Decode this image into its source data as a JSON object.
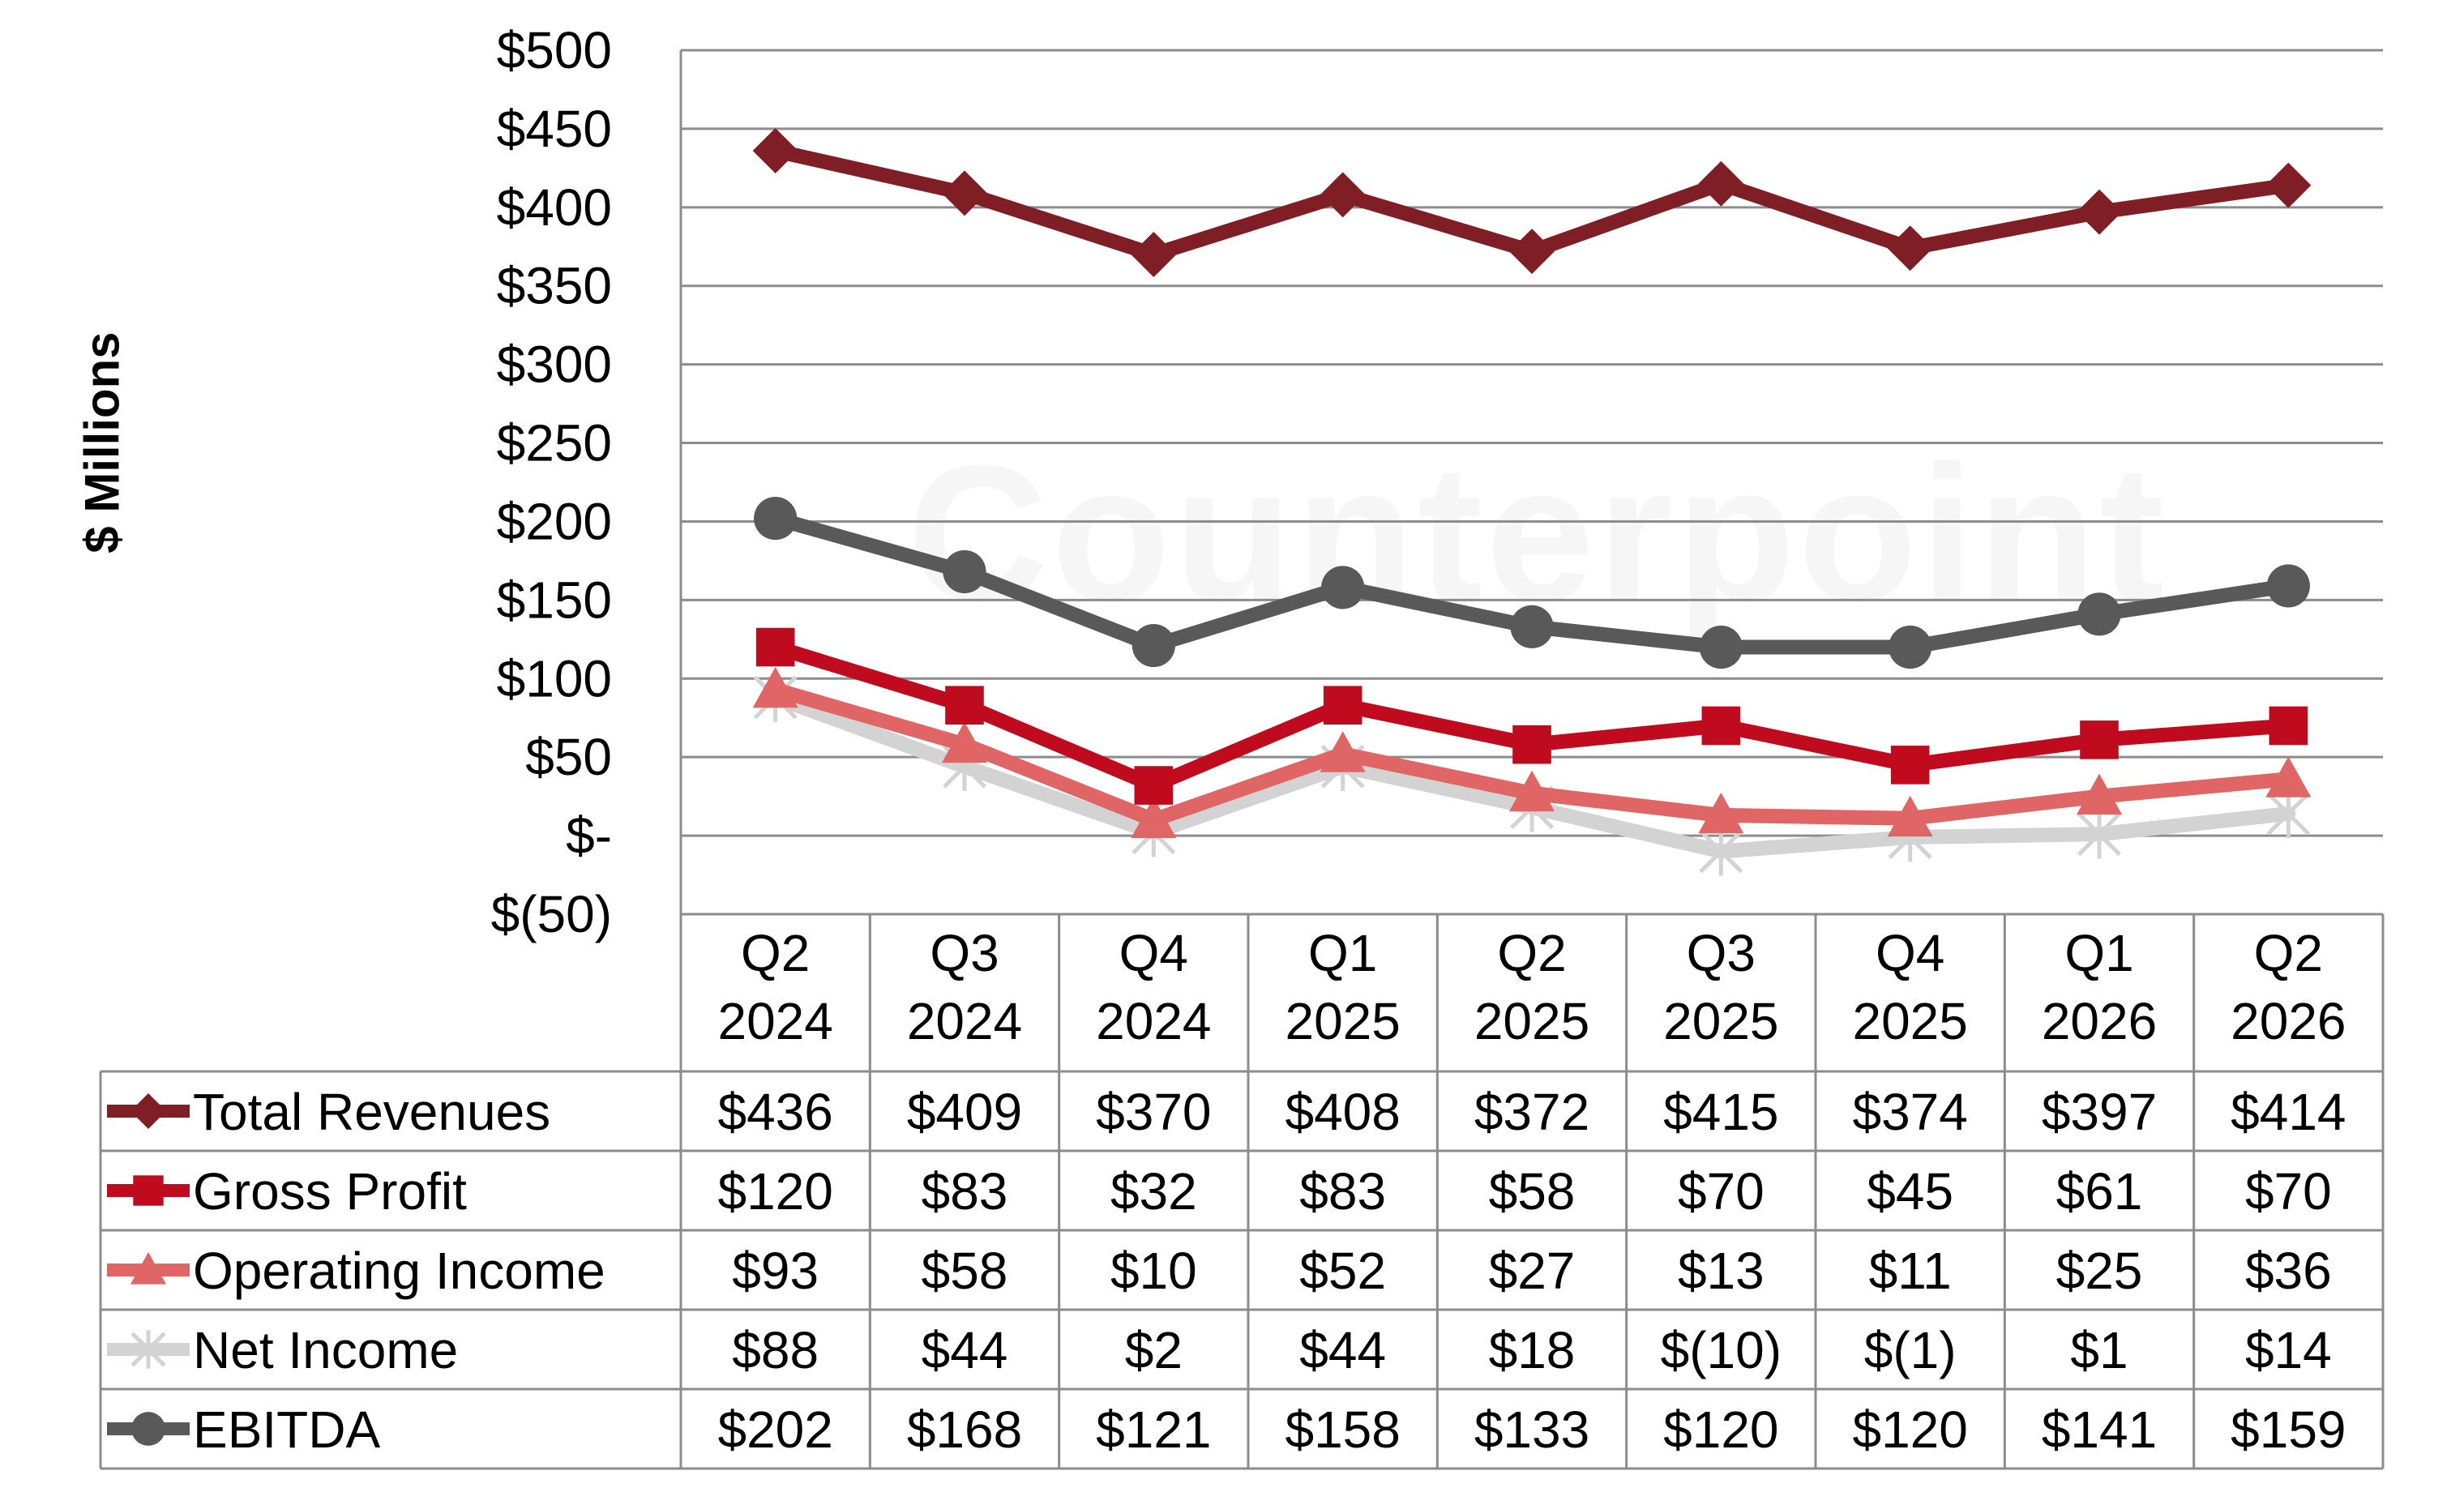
{
  "watermark": "Counterpoint",
  "chart_data": {
    "type": "line",
    "title": "",
    "ylabel": "$ Millions",
    "ylim": [
      -50,
      500
    ],
    "yticks": [
      500,
      450,
      400,
      350,
      300,
      250,
      200,
      150,
      100,
      50,
      0,
      -50
    ],
    "ytick_labels": [
      "$500",
      "$450",
      "$400",
      "$350",
      "$300",
      "$250",
      "$200",
      "$150",
      "$100",
      "$50",
      "$-",
      "$(50)"
    ],
    "grid": true,
    "legend": "data table below chart",
    "categories": [
      [
        "Q2",
        "2024"
      ],
      [
        "Q3",
        "2024"
      ],
      [
        "Q4",
        "2024"
      ],
      [
        "Q1",
        "2025"
      ],
      [
        "Q2",
        "2025"
      ],
      [
        "Q3",
        "2025"
      ],
      [
        "Q4",
        "2025"
      ],
      [
        "Q1",
        "2026"
      ],
      [
        "Q2",
        "2026"
      ]
    ],
    "series": [
      {
        "name": "Total Revenues",
        "marker": "diamond",
        "color": "#7F1F25",
        "values": [
          436,
          409,
          370,
          408,
          372,
          415,
          374,
          397,
          414
        ],
        "labels": [
          "$436",
          "$409",
          "$370",
          "$408",
          "$372",
          "$415",
          "$374",
          "$397",
          "$414"
        ]
      },
      {
        "name": "Gross Profit",
        "marker": "square",
        "color": "#C00B1E",
        "values": [
          120,
          83,
          32,
          83,
          58,
          70,
          45,
          61,
          70
        ],
        "labels": [
          "$120",
          "$83",
          "$32",
          "$83",
          "$58",
          "$70",
          "$45",
          "$61",
          "$70"
        ]
      },
      {
        "name": "Operating Income",
        "marker": "triangle",
        "color": "#E06565",
        "values": [
          93,
          58,
          10,
          52,
          27,
          13,
          11,
          25,
          36
        ],
        "labels": [
          "$93",
          "$58",
          "$10",
          "$52",
          "$27",
          "$13",
          "$11",
          "$25",
          "$36"
        ]
      },
      {
        "name": "Net Income",
        "marker": "star",
        "color": "#D3D3D3",
        "values": [
          88,
          44,
          2,
          44,
          18,
          -10,
          -1,
          1,
          14
        ],
        "labels": [
          "$88",
          "$44",
          "$2",
          "$44",
          "$18",
          "$(10)",
          "$(1)",
          "$1",
          "$14"
        ]
      },
      {
        "name": "EBITDA",
        "marker": "circle",
        "color": "#595959",
        "values": [
          202,
          168,
          121,
          158,
          133,
          120,
          120,
          141,
          159
        ],
        "labels": [
          "$202",
          "$168",
          "$121",
          "$158",
          "$133",
          "$120",
          "$120",
          "$141",
          "$159"
        ]
      }
    ]
  }
}
